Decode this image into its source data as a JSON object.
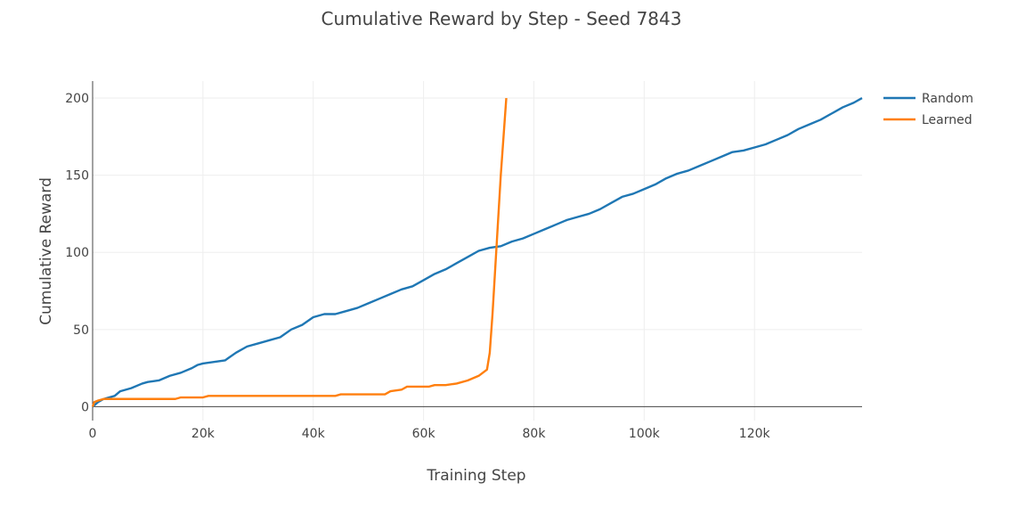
{
  "chart_data": {
    "type": "line",
    "title": "Cumulative Reward by Step - Seed 7843",
    "xlabel": "Training Step",
    "ylabel": "Cumulative Reward",
    "xlim": [
      0,
      139500
    ],
    "ylim": [
      -9,
      211
    ],
    "x_ticks": [
      0,
      20000,
      40000,
      60000,
      80000,
      100000,
      120000
    ],
    "x_tick_labels": [
      "0",
      "20k",
      "40k",
      "60k",
      "80k",
      "100k",
      "120k"
    ],
    "y_ticks": [
      0,
      50,
      100,
      150,
      200
    ],
    "y_tick_labels": [
      "0",
      "50",
      "100",
      "150",
      "200"
    ],
    "grid": true,
    "legend_position": "top-right",
    "series": [
      {
        "name": "Random",
        "color": "#1f77b4",
        "x": [
          0,
          1000,
          2000,
          3000,
          4000,
          5000,
          7000,
          9000,
          10000,
          12000,
          14000,
          16000,
          18000,
          19000,
          20000,
          22000,
          24000,
          26000,
          28000,
          30000,
          32000,
          34000,
          36000,
          38000,
          40000,
          42000,
          44000,
          46000,
          48000,
          50000,
          52000,
          54000,
          56000,
          58000,
          60000,
          62000,
          64000,
          66000,
          68000,
          70000,
          72000,
          74000,
          76000,
          78000,
          80000,
          82000,
          84000,
          86000,
          88000,
          90000,
          92000,
          94000,
          96000,
          98000,
          100000,
          102000,
          104000,
          106000,
          108000,
          110000,
          112000,
          114000,
          116000,
          118000,
          120000,
          122000,
          124000,
          126000,
          128000,
          130000,
          132000,
          134000,
          136000,
          138000,
          139500
        ],
        "y": [
          0,
          3,
          5,
          6,
          7,
          10,
          12,
          15,
          16,
          17,
          20,
          22,
          25,
          27,
          28,
          29,
          30,
          35,
          39,
          41,
          43,
          45,
          50,
          53,
          58,
          60,
          60,
          62,
          64,
          67,
          70,
          73,
          76,
          78,
          82,
          86,
          89,
          93,
          97,
          101,
          103,
          104,
          107,
          109,
          112,
          115,
          118,
          121,
          123,
          125,
          128,
          132,
          136,
          138,
          141,
          144,
          148,
          151,
          153,
          156,
          159,
          162,
          165,
          166,
          168,
          170,
          173,
          176,
          180,
          183,
          186,
          190,
          194,
          197,
          200
        ]
      },
      {
        "name": "Learned",
        "color": "#ff7f0e",
        "x": [
          0,
          300,
          1000,
          2000,
          4000,
          8000,
          15000,
          16000,
          20000,
          21000,
          30000,
          44000,
          45000,
          53000,
          54000,
          56000,
          57000,
          61000,
          62000,
          64000,
          66000,
          68000,
          70000,
          71500,
          72000,
          72500,
          73000,
          73500,
          74000,
          74500,
          75000
        ],
        "y": [
          0,
          3,
          4,
          5,
          5,
          5,
          5,
          6,
          6,
          7,
          7,
          7,
          8,
          8,
          10,
          11,
          13,
          13,
          14,
          14,
          15,
          17,
          20,
          24,
          35,
          60,
          90,
          120,
          150,
          175,
          200
        ]
      }
    ]
  }
}
